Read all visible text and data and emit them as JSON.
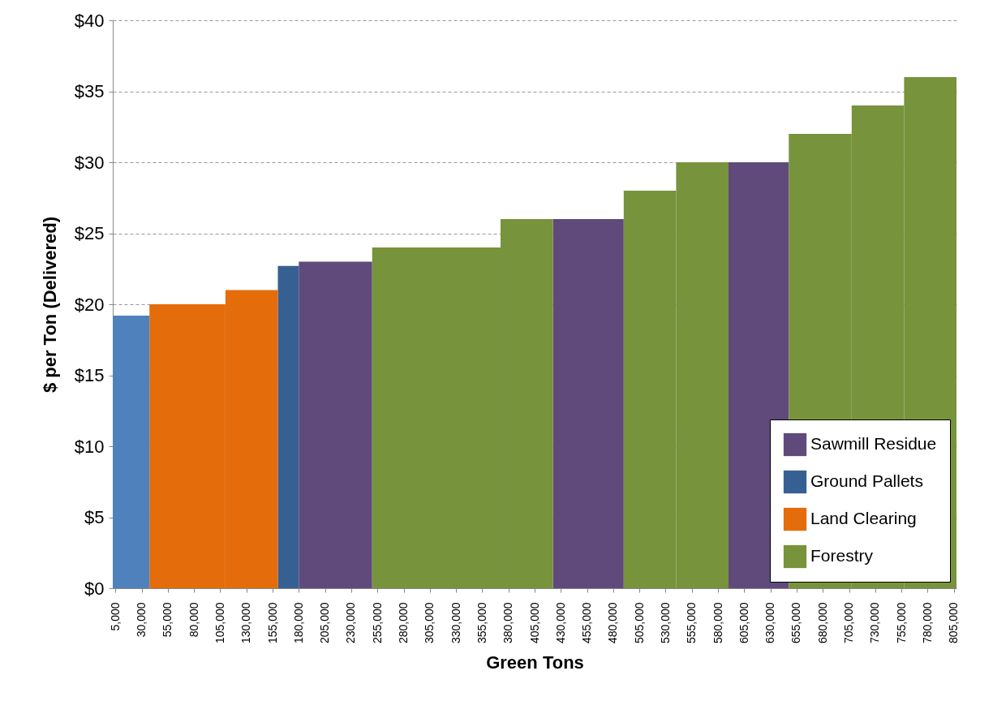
{
  "chart_data": {
    "type": "histogram",
    "xlabel": "Green Tons",
    "ylabel": "$ per Ton (Delivered)",
    "xlim": [
      2500,
      807500
    ],
    "xticks": [
      {
        "value": 5000,
        "label": "5,000"
      },
      {
        "value": 30000,
        "label": "30,000"
      },
      {
        "value": 55000,
        "label": "55,000"
      },
      {
        "value": 80000,
        "label": "80,000"
      },
      {
        "value": 105000,
        "label": "105,000"
      },
      {
        "value": 130000,
        "label": "130,000"
      },
      {
        "value": 155000,
        "label": "155,000"
      },
      {
        "value": 180000,
        "label": "180,000"
      },
      {
        "value": 205000,
        "label": "205,000"
      },
      {
        "value": 230000,
        "label": "230,000"
      },
      {
        "value": 255000,
        "label": "255,000"
      },
      {
        "value": 280000,
        "label": "280,000"
      },
      {
        "value": 305000,
        "label": "305,000"
      },
      {
        "value": 330000,
        "label": "330,000"
      },
      {
        "value": 355000,
        "label": "355,000"
      },
      {
        "value": 380000,
        "label": "380,000"
      },
      {
        "value": 405000,
        "label": "405,000"
      },
      {
        "value": 430000,
        "label": "430,000"
      },
      {
        "value": 455000,
        "label": "455,000"
      },
      {
        "value": 480000,
        "label": "480,000"
      },
      {
        "value": 505000,
        "label": "505,000"
      },
      {
        "value": 530000,
        "label": "530,000"
      },
      {
        "value": 555000,
        "label": "555,000"
      },
      {
        "value": 580000,
        "label": "580,000"
      },
      {
        "value": 605000,
        "label": "605,000"
      },
      {
        "value": 630000,
        "label": "630,000"
      },
      {
        "value": 655000,
        "label": "655,000"
      },
      {
        "value": 680000,
        "label": "680,000"
      },
      {
        "value": 705000,
        "label": "705,000"
      },
      {
        "value": 730000,
        "label": "730,000"
      },
      {
        "value": 755000,
        "label": "755,000"
      },
      {
        "value": 780000,
        "label": "780,000"
      },
      {
        "value": 805000,
        "label": "805,000"
      }
    ],
    "ylim": [
      0,
      40
    ],
    "yticks": [
      {
        "value": 0,
        "label": "$0"
      },
      {
        "value": 5,
        "label": "$5"
      },
      {
        "value": 10,
        "label": "$10"
      },
      {
        "value": 15,
        "label": "$15"
      },
      {
        "value": 20,
        "label": "$20"
      },
      {
        "value": 25,
        "label": "$25"
      },
      {
        "value": 30,
        "label": "$30"
      },
      {
        "value": 35,
        "label": "$35"
      },
      {
        "value": 40,
        "label": "$40"
      }
    ],
    "grid": "y",
    "legend": "bottom right",
    "bins": [
      2500,
      37500,
      110000,
      160000,
      180000,
      250000,
      372500,
      422500,
      490000,
      540000,
      590000,
      647500,
      707500,
      757500,
      807500
    ],
    "series": [
      {
        "name": "Sawmill Residue",
        "color": "#604a7b",
        "values": [
          null,
          null,
          null,
          null,
          23,
          null,
          null,
          26,
          null,
          null,
          30,
          null,
          null,
          null
        ]
      },
      {
        "name": "Ground Pallets",
        "color": "#376092",
        "values": [
          null,
          null,
          null,
          22.7,
          null,
          null,
          null,
          null,
          null,
          null,
          null,
          null,
          null,
          null
        ]
      },
      {
        "name": "Land Clearing",
        "color": "#e46c0a",
        "values": [
          null,
          20,
          21,
          null,
          null,
          null,
          null,
          null,
          null,
          null,
          null,
          null,
          null,
          null
        ]
      },
      {
        "name": "Forestry",
        "color": "#77933c",
        "values": [
          null,
          null,
          null,
          null,
          null,
          24,
          26,
          null,
          28,
          30,
          null,
          32,
          34,
          36
        ]
      },
      {
        "color": "#4f81bd",
        "values": [
          19.2,
          null,
          null,
          null,
          null,
          null,
          null,
          null,
          null,
          null,
          null,
          null,
          null,
          null
        ]
      }
    ]
  }
}
